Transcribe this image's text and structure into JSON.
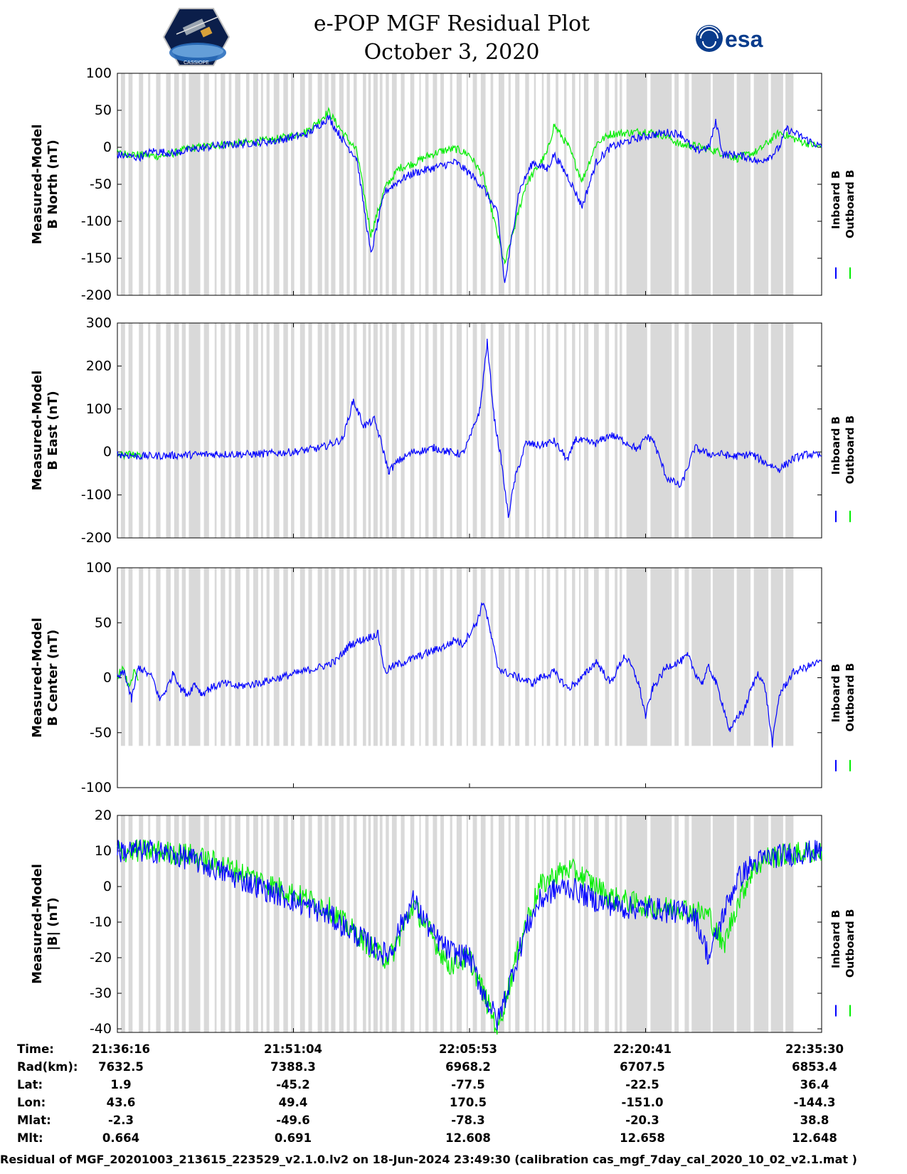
{
  "header": {
    "title_line1": "e-POP MGF Residual Plot",
    "title_line2": "October 3, 2020",
    "left_logo": "cassiope-mission-logo",
    "left_logo_text": "CASSIOPE",
    "right_logo": "esa-logo",
    "right_logo_text": "esa"
  },
  "colors": {
    "inboard": "#0000ff",
    "outboard": "#00ee00",
    "shading": "#d9d9d9"
  },
  "legend": {
    "inboard_label": "Inboard B",
    "outboard_label": "Outboard B"
  },
  "chart_data": [
    {
      "type": "line",
      "name": "b-north",
      "ylabel_line1": "Measured-Model",
      "ylabel_line2": "B North (nT)",
      "ylim": [
        -200,
        100
      ],
      "yticks": [
        100,
        50,
        0,
        -50,
        -100,
        -150,
        -200
      ],
      "shade_range": [
        -200,
        100
      ],
      "series": [
        {
          "name": "Outboard B",
          "x": [
            0,
            6,
            8,
            10,
            14,
            18,
            22,
            25,
            27,
            30,
            32,
            34,
            36,
            38,
            40,
            42,
            44,
            46,
            48,
            50,
            52,
            55,
            58,
            61,
            62,
            64,
            66,
            68,
            70,
            73,
            75,
            78,
            80,
            82,
            85,
            88,
            91,
            94,
            97,
            100
          ],
          "values": [
            -8,
            -12,
            -8,
            -2,
            3,
            6,
            10,
            16,
            22,
            48,
            20,
            -5,
            -118,
            -55,
            -28,
            -22,
            -12,
            -5,
            -2,
            -10,
            -40,
            -158,
            -50,
            -8,
            30,
            2,
            -45,
            5,
            18,
            20,
            22,
            15,
            3,
            2,
            -5,
            -15,
            -5,
            20,
            8,
            0
          ]
        },
        {
          "name": "Inboard B",
          "x": [
            0,
            3,
            5,
            8,
            10,
            14,
            18,
            22,
            25,
            27,
            30,
            32,
            34,
            36,
            37,
            38,
            40,
            42,
            44,
            46,
            48,
            50,
            52,
            54,
            55,
            57,
            59,
            61,
            62,
            64,
            66,
            68,
            70,
            73,
            75,
            78,
            80,
            82,
            84,
            85,
            86,
            88,
            90,
            91,
            93,
            94,
            95,
            97,
            100
          ],
          "values": [
            -10,
            -14,
            -5,
            -8,
            -4,
            2,
            5,
            8,
            14,
            18,
            40,
            10,
            -15,
            -145,
            -100,
            -60,
            -45,
            -35,
            -30,
            -25,
            -20,
            -35,
            -55,
            -90,
            -185,
            -60,
            -20,
            -30,
            -10,
            -40,
            -80,
            -20,
            0,
            10,
            15,
            20,
            18,
            -5,
            0,
            35,
            -10,
            -10,
            -15,
            -20,
            -10,
            0,
            25,
            15,
            0
          ]
        }
      ]
    },
    {
      "type": "line",
      "name": "b-east",
      "ylabel_line1": "Measured-Model",
      "ylabel_line2": "B East (nT)",
      "ylim": [
        -200,
        300
      ],
      "yticks": [
        300,
        200,
        100,
        0,
        -100,
        -200
      ],
      "shade_range": [
        -200,
        300
      ],
      "series": [
        {
          "name": "Outboard B",
          "x": [
            0,
            1,
            2,
            3,
            3.5
          ],
          "values": [
            -5,
            -8,
            -5,
            -10,
            -6
          ]
        },
        {
          "name": "Inboard B",
          "x": [
            0,
            3,
            8,
            14,
            20,
            25,
            29,
            32,
            33.5,
            35,
            36.5,
            37.5,
            38.5,
            40,
            42,
            44,
            45,
            47,
            49,
            50,
            51.5,
            52.5,
            53.5,
            54.5,
            55.5,
            56.5,
            58,
            60,
            62,
            64,
            65,
            66,
            68,
            70,
            72,
            74,
            75,
            76,
            78,
            80,
            82,
            84,
            86,
            87,
            88,
            90,
            92,
            94,
            96,
            98,
            100
          ],
          "values": [
            -5,
            -10,
            -8,
            -5,
            -5,
            0,
            10,
            30,
            120,
            60,
            75,
            20,
            -45,
            -20,
            0,
            5,
            10,
            0,
            -5,
            30,
            100,
            255,
            80,
            -20,
            -150,
            -60,
            20,
            15,
            25,
            -20,
            30,
            25,
            20,
            40,
            25,
            5,
            35,
            30,
            -60,
            -80,
            10,
            -5,
            -5,
            -10,
            -10,
            -5,
            -25,
            -40,
            -15,
            -5,
            -10
          ]
        }
      ]
    },
    {
      "type": "line",
      "name": "b-center",
      "ylabel_line1": "Measured-Model",
      "ylabel_line2": "B Center (nT)",
      "ylim": [
        -100,
        100
      ],
      "yticks": [
        100,
        50,
        0,
        -50,
        -100
      ],
      "shade_range": [
        -62,
        100
      ],
      "series": [
        {
          "name": "Outboard B",
          "x": [
            0,
            0.8,
            1.6,
            2.4,
            3
          ],
          "values": [
            2,
            8,
            -8,
            5,
            -2
          ]
        },
        {
          "name": "Inboard B",
          "x": [
            0,
            1,
            2,
            3,
            5,
            6,
            7,
            8,
            9,
            10,
            11,
            12,
            13,
            15,
            17,
            20,
            23,
            26,
            29,
            31,
            33,
            35,
            37,
            38,
            39,
            41,
            43,
            45,
            47,
            48,
            49,
            50,
            51,
            52,
            53,
            54,
            55,
            57,
            59,
            60,
            62,
            64,
            66,
            68,
            70,
            72,
            73,
            74,
            75,
            76,
            78,
            80,
            81,
            82,
            83,
            84,
            85,
            86,
            87,
            88,
            89,
            90,
            91,
            92,
            93,
            94,
            95,
            96,
            98,
            100
          ],
          "values": [
            0,
            5,
            -20,
            10,
            0,
            -20,
            -10,
            5,
            -10,
            -15,
            -5,
            -15,
            -10,
            -5,
            -8,
            -5,
            0,
            5,
            10,
            15,
            30,
            35,
            40,
            5,
            10,
            15,
            20,
            25,
            30,
            35,
            30,
            40,
            50,
            70,
            40,
            10,
            5,
            0,
            -5,
            0,
            5,
            -10,
            0,
            15,
            -5,
            20,
            10,
            -5,
            -35,
            -10,
            10,
            15,
            20,
            5,
            -5,
            10,
            -5,
            -25,
            -50,
            -35,
            -30,
            -10,
            5,
            -10,
            -60,
            -15,
            -5,
            5,
            10,
            15
          ]
        }
      ]
    },
    {
      "type": "line",
      "name": "b-magnitude",
      "ylabel_line1": "Measured-Model",
      "ylabel_line2": "|B| (nT)",
      "ylim": [
        -41,
        20
      ],
      "yticks": [
        20,
        10,
        0,
        -10,
        -20,
        -30,
        -40
      ],
      "shade_range": [
        -41,
        20
      ],
      "series": [
        {
          "name": "Outboard B",
          "x": [
            0,
            5,
            10,
            15,
            20,
            25,
            30,
            32,
            35,
            37,
            38,
            39,
            42,
            45,
            47,
            50,
            52,
            54,
            56,
            58,
            60,
            62,
            64,
            66,
            68,
            70,
            72,
            74,
            76,
            78,
            80,
            82,
            84,
            86,
            88,
            90,
            92,
            95,
            100
          ],
          "values": [
            10,
            10,
            9,
            6,
            2,
            -2,
            -6,
            -10,
            -15,
            -19,
            -20,
            -19,
            -5,
            -15,
            -22,
            -20,
            -30,
            -40,
            -25,
            -10,
            0,
            3,
            5,
            3,
            0,
            -3,
            -4,
            -5,
            -6,
            -6,
            -6,
            -7,
            -8,
            -17,
            -5,
            4,
            8,
            9,
            10
          ]
        },
        {
          "name": "Inboard B",
          "x": [
            0,
            5,
            10,
            15,
            20,
            25,
            30,
            32,
            35,
            37,
            38,
            39,
            40,
            42,
            45,
            47,
            50,
            52,
            54,
            56,
            58,
            60,
            62,
            64,
            66,
            68,
            70,
            72,
            74,
            76,
            78,
            80,
            82,
            84,
            86,
            88,
            90,
            92,
            95,
            100
          ],
          "values": [
            10,
            10,
            8,
            4,
            0,
            -4,
            -8,
            -11,
            -15,
            -18,
            -19,
            -18,
            -12,
            -4,
            -14,
            -18,
            -20,
            -30,
            -38,
            -25,
            -12,
            -4,
            -1,
            0,
            -2,
            -4,
            -5,
            -6,
            -6,
            -6,
            -7,
            -7,
            -8,
            -20,
            -8,
            2,
            6,
            8,
            9,
            10
          ]
        }
      ]
    }
  ],
  "x_axis": {
    "tick_fractions": [
      0,
      0.25,
      0.5,
      0.75,
      1
    ],
    "labels": {
      "time_label": "Time:",
      "time": [
        "21:36:16",
        "21:51:04",
        "22:05:53",
        "22:20:41",
        "22:35:30"
      ],
      "rad_label": "Rad(km):",
      "rad": [
        "7632.5",
        "7388.3",
        "6968.2",
        "6707.5",
        "6853.4"
      ],
      "lat_label": "Lat:",
      "lat": [
        "1.9",
        "-45.2",
        "-77.5",
        "-22.5",
        "36.4"
      ],
      "lon_label": "Lon:",
      "lon": [
        "43.6",
        "49.4",
        "170.5",
        "-151.0",
        "-144.3"
      ],
      "mlat_label": "Mlat:",
      "mlat": [
        "-2.3",
        "-49.6",
        "-78.3",
        "-20.3",
        "38.8"
      ],
      "mlt_label": "Mlt:",
      "mlt": [
        "0.664",
        "0.691",
        "12.608",
        "12.658",
        "12.648"
      ]
    }
  },
  "footer": {
    "text": "Residual of MGF_20201003_213615_223529_v2.1.0.lv2 on 18-Jun-2024 23:49:30 (calibration cas_mgf_7day_cal_2020_10_02_v2.1.mat )"
  }
}
